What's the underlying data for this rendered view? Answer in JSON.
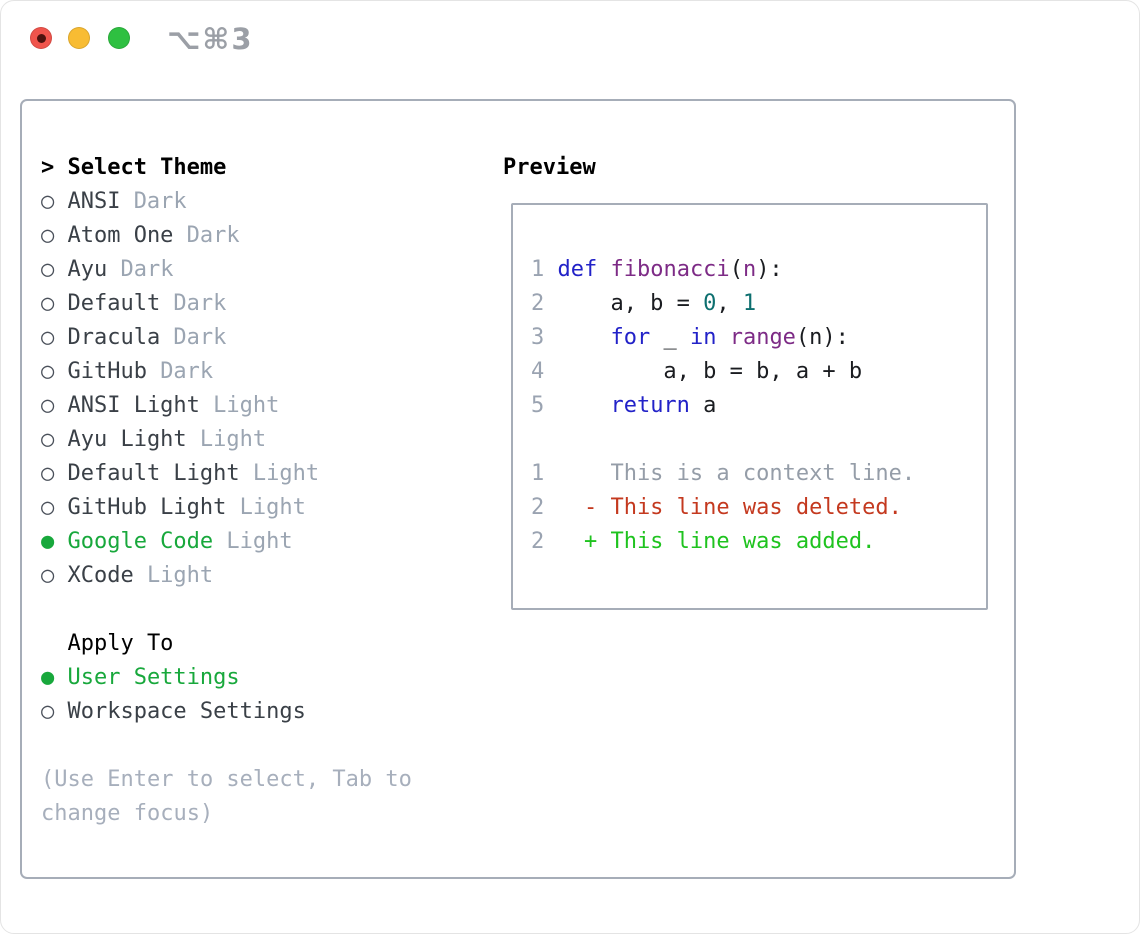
{
  "window": {
    "shortcut": "⌥⌘3",
    "buttons": [
      {
        "name": "close",
        "color": "#f0544c"
      },
      {
        "name": "minimize",
        "color": "#f8bc33"
      },
      {
        "name": "zoom",
        "color": "#2ec041"
      }
    ]
  },
  "theme_picker": {
    "header": {
      "prompt": ">",
      "title": "Select Theme"
    },
    "themes": [
      {
        "name": "ANSI",
        "variant": "Dark",
        "selected": false
      },
      {
        "name": "Atom One",
        "variant": "Dark",
        "selected": false
      },
      {
        "name": "Ayu",
        "variant": "Dark",
        "selected": false
      },
      {
        "name": "Default",
        "variant": "Dark",
        "selected": false
      },
      {
        "name": "Dracula",
        "variant": "Dark",
        "selected": false
      },
      {
        "name": "GitHub",
        "variant": "Dark",
        "selected": false
      },
      {
        "name": "ANSI Light",
        "variant": "Light",
        "selected": false
      },
      {
        "name": "Ayu Light",
        "variant": "Light",
        "selected": false
      },
      {
        "name": "Default Light",
        "variant": "Light",
        "selected": false
      },
      {
        "name": "GitHub Light",
        "variant": "Light",
        "selected": false
      },
      {
        "name": "Google Code",
        "variant": "Light",
        "selected": true
      },
      {
        "name": "XCode",
        "variant": "Light",
        "selected": false
      }
    ],
    "radio_icons": {
      "selected": "●",
      "unselected": "○"
    },
    "apply_to": {
      "title": "Apply To",
      "options": [
        {
          "label": "User Settings",
          "selected": true
        },
        {
          "label": "Workspace Settings",
          "selected": false
        }
      ]
    },
    "help": "(Use Enter to select, Tab to change focus)"
  },
  "preview": {
    "title": "Preview",
    "code_lines": [
      {
        "num": "1",
        "tokens": [
          [
            "def",
            "keyword"
          ],
          [
            " ",
            "plain"
          ],
          [
            "fibonacci",
            "function"
          ],
          [
            "(",
            "plain"
          ],
          [
            "n",
            "function"
          ],
          [
            "):",
            "plain"
          ]
        ]
      },
      {
        "num": "2",
        "tokens": [
          [
            "    a, b = ",
            "plain"
          ],
          [
            "0",
            "number_literal"
          ],
          [
            ", ",
            "plain"
          ],
          [
            "1",
            "number_literal"
          ]
        ]
      },
      {
        "num": "3",
        "tokens": [
          [
            "    ",
            "plain"
          ],
          [
            "for",
            "keyword"
          ],
          [
            " _ ",
            "plain"
          ],
          [
            "in",
            "keyword"
          ],
          [
            " ",
            "plain"
          ],
          [
            "range",
            "function"
          ],
          [
            "(n):",
            "plain"
          ]
        ]
      },
      {
        "num": "4",
        "tokens": [
          [
            "        a, b = b, a + b",
            "plain"
          ]
        ]
      },
      {
        "num": "5",
        "tokens": [
          [
            "    ",
            "plain"
          ],
          [
            "return",
            "keyword"
          ],
          [
            " a",
            "plain"
          ]
        ]
      }
    ],
    "diff_lines": [
      {
        "num": "1",
        "text": "    This is a context line.",
        "kind": "context"
      },
      {
        "num": "2",
        "text": "  - This line was deleted.",
        "kind": "deleted"
      },
      {
        "num": "2",
        "text": "  + This line was added.",
        "kind": "added"
      }
    ],
    "colors": {
      "selection_green": "#18a83c",
      "keyword": "#2222c8",
      "function": "#7d2b86",
      "number_literal": "#0d6f6f",
      "plain": "#1a1c20",
      "line_number": "#9aa3b1",
      "context": "#959da8",
      "deleted": "#c4391f",
      "added": "#1fc31f"
    }
  }
}
